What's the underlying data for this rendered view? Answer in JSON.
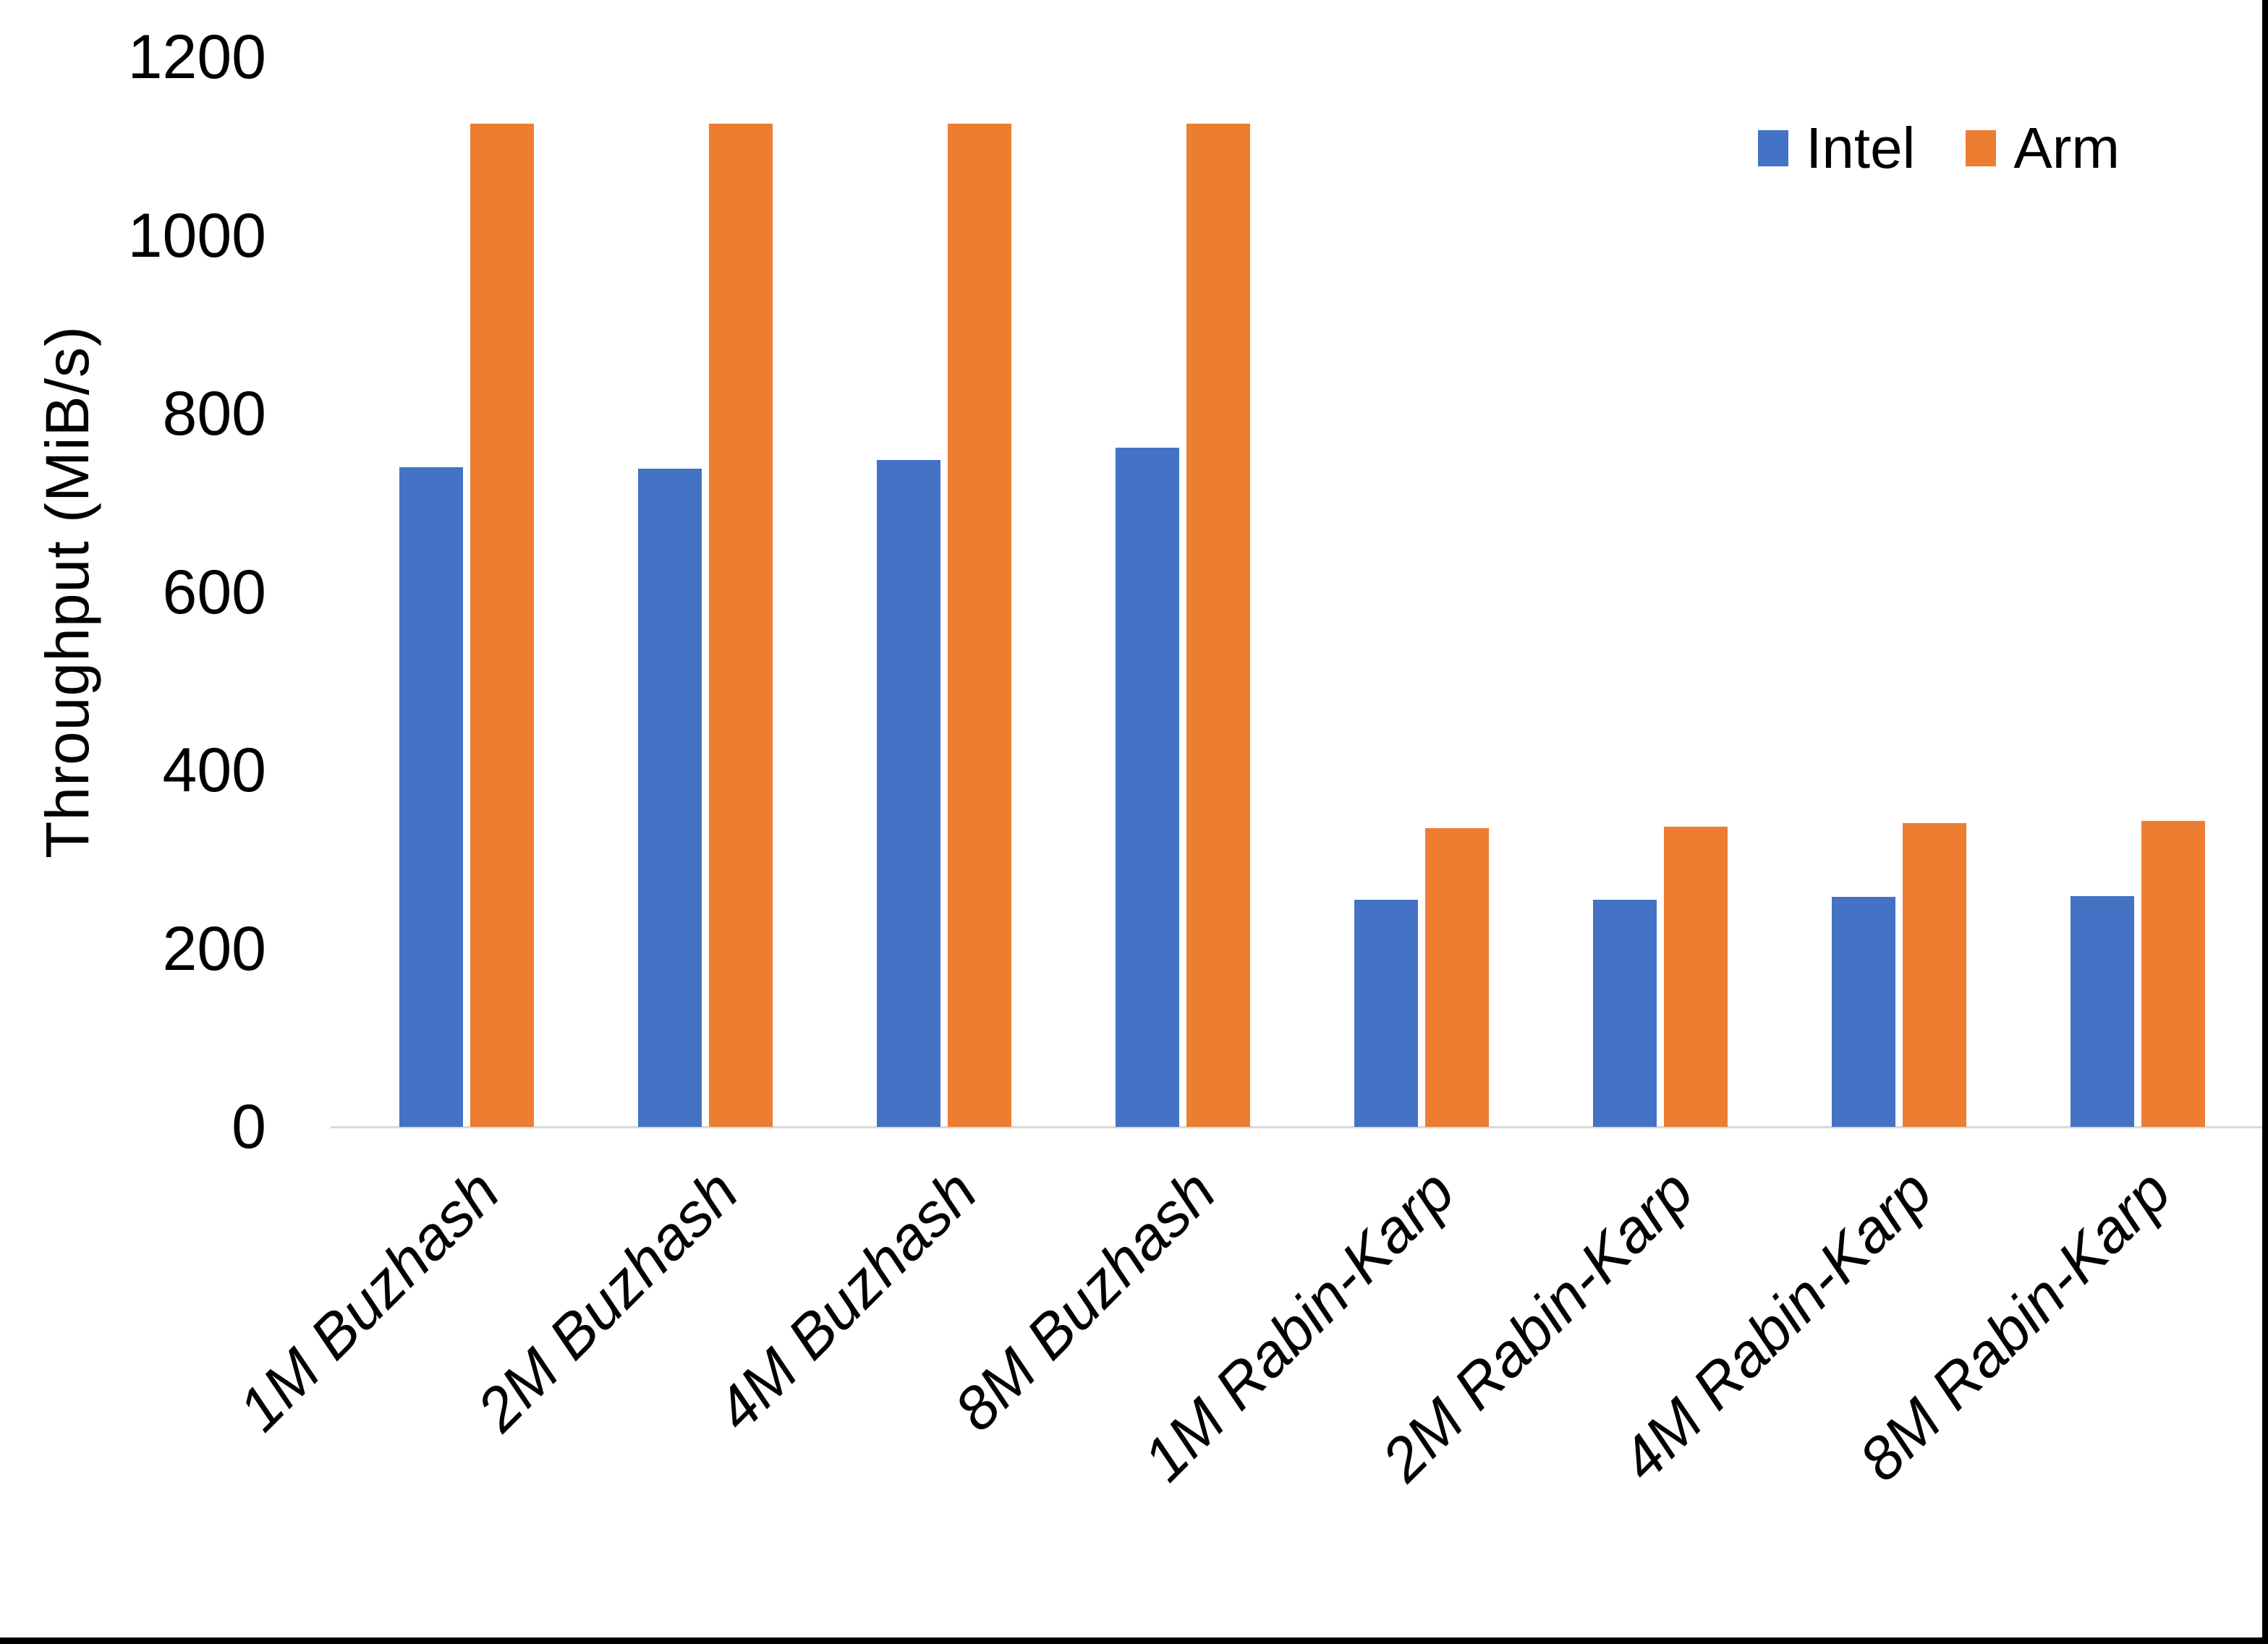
{
  "chart_data": {
    "type": "bar",
    "title": "",
    "xlabel": "",
    "ylabel": "Throughput (MiB/s)",
    "categories": [
      "1M Buzhash",
      "2M Buzhash",
      "4M Buzhash",
      "8M Buzhash",
      "1M Rabin-Karp",
      "2M Rabin-Karp",
      "4M Rabin-Karp",
      "8M Rabin-Karp"
    ],
    "series": [
      {
        "name": "Intel",
        "color": "#4472C4",
        "values": [
          740,
          738,
          748,
          762,
          255,
          255,
          258,
          259
        ]
      },
      {
        "name": "Arm",
        "color": "#ED7D31",
        "values": [
          1125,
          1125,
          1125,
          1125,
          335,
          337,
          341,
          343
        ]
      }
    ],
    "ylim": [
      0,
      1200
    ],
    "y_ticks": [
      0,
      200,
      400,
      600,
      800,
      1000,
      1200
    ],
    "grid": false,
    "legend_position": "top-right",
    "axis_line_color": "#D9D9D9",
    "text_color": "#000000",
    "x_label_style": "italic, rotated 45 degrees"
  }
}
